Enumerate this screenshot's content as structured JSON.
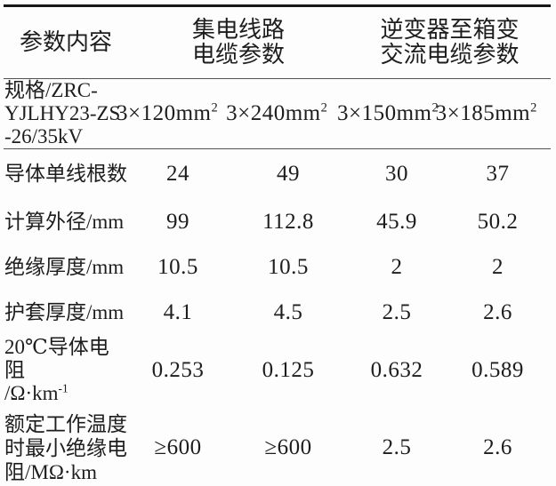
{
  "table": {
    "header": {
      "param_label": "参数内容",
      "group1_lines": [
        "集电线路",
        "电缆参数"
      ],
      "group2_lines": [
        "逆变器至箱变",
        "交流电缆参数"
      ]
    },
    "spec_row": {
      "label_lines": [
        "规格/ZRC-",
        "YJLHY23-ZS",
        "-26/35kV"
      ],
      "values": [
        {
          "base": "3×120mm",
          "sup": "2"
        },
        {
          "base": "3×240mm",
          "sup": "2"
        },
        {
          "base": "3×150mm",
          "sup": "2"
        },
        {
          "base": "3×185mm",
          "sup": "2"
        }
      ]
    },
    "rows": [
      {
        "label_lines": [
          "导体单线根数"
        ],
        "values": [
          "24",
          "49",
          "30",
          "37"
        ]
      },
      {
        "label_lines": [
          "计算外径/mm"
        ],
        "values": [
          "99",
          "112.8",
          "45.9",
          "50.2"
        ]
      },
      {
        "label_lines": [
          "绝缘厚度/mm"
        ],
        "values": [
          "10.5",
          "10.5",
          "2",
          "2"
        ]
      },
      {
        "label_lines": [
          "护套厚度/mm"
        ],
        "values": [
          "4.1",
          "4.5",
          "2.5",
          "2.6"
        ]
      },
      {
        "label_lines": [
          "20℃导体电阻"
        ],
        "unit_base": "/Ω·km",
        "unit_sup": "-1",
        "values": [
          "0.253",
          "0.125",
          "0.632",
          "0.589"
        ]
      },
      {
        "label_lines": [
          "额定工作温度",
          "时最小绝缘电",
          "阻/MΩ·km"
        ],
        "values": [
          "≥600",
          "≥600",
          "2.5",
          "2.6"
        ]
      }
    ],
    "colors": {
      "text": "#1d1d1d",
      "border_heavy": "#171717",
      "border_light": "#525252",
      "background": "#fdfdfd"
    }
  }
}
